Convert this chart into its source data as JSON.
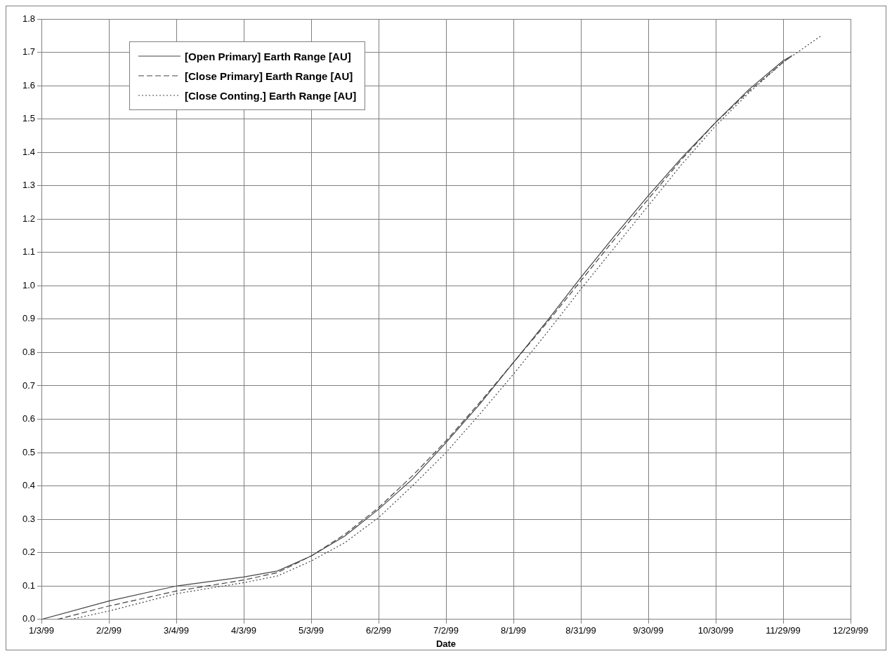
{
  "chart_data": {
    "type": "line",
    "xlabel": "Date",
    "legend": "top left",
    "grid": true,
    "marker": "none",
    "xlim": [
      "1999-01-03",
      "1999-12-29"
    ],
    "xticks": [
      {
        "value": "1999-01-03",
        "label": "1/3/99"
      },
      {
        "value": "1999-02-02",
        "label": "2/2/99"
      },
      {
        "value": "1999-03-04",
        "label": "3/4/99"
      },
      {
        "value": "1999-04-03",
        "label": "4/3/99"
      },
      {
        "value": "1999-05-03",
        "label": "5/3/99"
      },
      {
        "value": "1999-06-02",
        "label": "6/2/99"
      },
      {
        "value": "1999-07-02",
        "label": "7/2/99"
      },
      {
        "value": "1999-08-01",
        "label": "8/1/99"
      },
      {
        "value": "1999-08-31",
        "label": "8/31/99"
      },
      {
        "value": "1999-09-30",
        "label": "9/30/99"
      },
      {
        "value": "1999-10-30",
        "label": "10/30/99"
      },
      {
        "value": "1999-11-29",
        "label": "11/29/99"
      },
      {
        "value": "1999-12-29",
        "label": "12/29/99"
      }
    ],
    "ylim": [
      0,
      1.8
    ],
    "yticks": [
      {
        "value": 0,
        "label": "0.0"
      },
      {
        "value": 0.1,
        "label": "0.1"
      },
      {
        "value": 0.2,
        "label": "0.2"
      },
      {
        "value": 0.3,
        "label": "0.3"
      },
      {
        "value": 0.4,
        "label": "0.4"
      },
      {
        "value": 0.5,
        "label": "0.5"
      },
      {
        "value": 0.6,
        "label": "0.6"
      },
      {
        "value": 0.7,
        "label": "0.7"
      },
      {
        "value": 0.8,
        "label": "0.8"
      },
      {
        "value": 0.9,
        "label": "0.9"
      },
      {
        "value": 1,
        "label": "1.0"
      },
      {
        "value": 1.1,
        "label": "1.1"
      },
      {
        "value": 1.2,
        "label": "1.2"
      },
      {
        "value": 1.3,
        "label": "1.3"
      },
      {
        "value": 1.4,
        "label": "1.4"
      },
      {
        "value": 1.5,
        "label": "1.5"
      },
      {
        "value": 1.6,
        "label": "1.6"
      },
      {
        "value": 1.7,
        "label": "1.7"
      },
      {
        "value": 1.8,
        "label": "1.8"
      }
    ],
    "series": [
      {
        "name": "[Open Primary] Earth Range [AU]",
        "color": "#444444",
        "line_style": "solid",
        "x": [
          "1999-01-03",
          "1999-02-02",
          "1999-03-04",
          "1999-04-03",
          "1999-04-18",
          "1999-05-03",
          "1999-05-18",
          "1999-06-02",
          "1999-06-17",
          "1999-07-02",
          "1999-07-17",
          "1999-08-01",
          "1999-08-16",
          "1999-08-31",
          "1999-09-15",
          "1999-09-30",
          "1999-10-15",
          "1999-10-30",
          "1999-11-14",
          "1999-11-29",
          "1999-12-03"
        ],
        "values": [
          0,
          0.055,
          0.1,
          0.127,
          0.145,
          0.19,
          0.25,
          0.33,
          0.42,
          0.53,
          0.645,
          0.77,
          0.895,
          1.025,
          1.15,
          1.27,
          1.385,
          1.49,
          1.59,
          1.675,
          1.69
        ]
      },
      {
        "name": "[Close Primary] Earth Range [AU]",
        "color": "#444444",
        "line_style": "dashed",
        "x": [
          "1999-01-10",
          "1999-02-02",
          "1999-03-04",
          "1999-04-03",
          "1999-04-18",
          "1999-05-03",
          "1999-05-18",
          "1999-06-02",
          "1999-06-17",
          "1999-07-02",
          "1999-07-17",
          "1999-08-01",
          "1999-08-16",
          "1999-08-31",
          "1999-09-15",
          "1999-09-30",
          "1999-10-15",
          "1999-10-30",
          "1999-11-14",
          "1999-11-29",
          "1999-12-03"
        ],
        "values": [
          0,
          0.04,
          0.085,
          0.118,
          0.14,
          0.19,
          0.255,
          0.335,
          0.43,
          0.535,
          0.65,
          0.77,
          0.89,
          1.015,
          1.14,
          1.26,
          1.38,
          1.49,
          1.585,
          1.67,
          1.69
        ]
      },
      {
        "name": "[Close Conting.] Earth Range [AU]",
        "color": "#444444",
        "line_style": "dotted",
        "x": [
          "1999-01-16",
          "1999-02-02",
          "1999-03-04",
          "1999-04-03",
          "1999-04-18",
          "1999-05-03",
          "1999-05-18",
          "1999-06-02",
          "1999-06-17",
          "1999-07-02",
          "1999-07-17",
          "1999-08-01",
          "1999-08-16",
          "1999-08-31",
          "1999-09-15",
          "1999-09-30",
          "1999-10-15",
          "1999-10-30",
          "1999-11-14",
          "1999-11-29",
          "1999-12-16"
        ],
        "values": [
          0,
          0.025,
          0.077,
          0.11,
          0.13,
          0.175,
          0.23,
          0.305,
          0.4,
          0.5,
          0.615,
          0.735,
          0.86,
          0.99,
          1.115,
          1.24,
          1.365,
          1.48,
          1.58,
          1.67,
          1.75
        ]
      }
    ]
  }
}
